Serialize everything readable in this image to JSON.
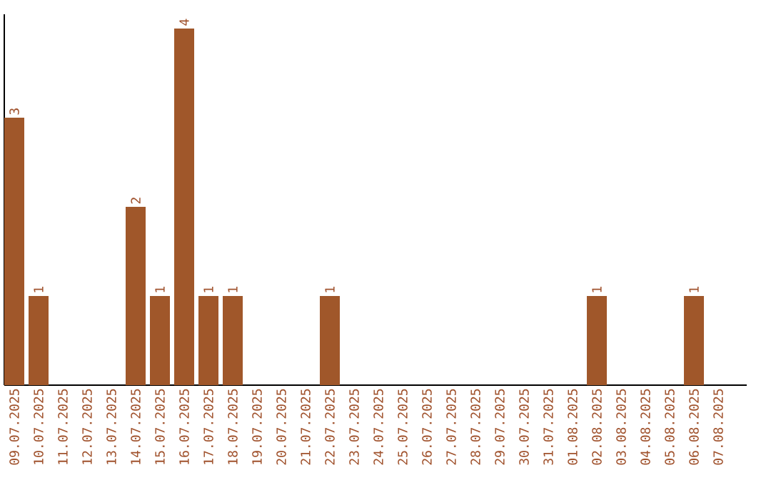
{
  "chart_data": {
    "type": "bar",
    "categories": [
      "09.07.2025",
      "10.07.2025",
      "11.07.2025",
      "12.07.2025",
      "13.07.2025",
      "14.07.2025",
      "15.07.2025",
      "16.07.2025",
      "17.07.2025",
      "18.07.2025",
      "19.07.2025",
      "20.07.2025",
      "21.07.2025",
      "22.07.2025",
      "23.07.2025",
      "24.07.2025",
      "25.07.2025",
      "26.07.2025",
      "27.07.2025",
      "28.07.2025",
      "29.07.2025",
      "30.07.2025",
      "31.07.2025",
      "01.08.2025",
      "02.08.2025",
      "03.08.2025",
      "04.08.2025",
      "05.08.2025",
      "06.08.2025",
      "07.08.2025"
    ],
    "values": [
      3,
      1,
      0,
      0,
      0,
      2,
      1,
      4,
      1,
      1,
      0,
      0,
      0,
      1,
      0,
      0,
      0,
      0,
      0,
      0,
      0,
      0,
      0,
      0,
      1,
      0,
      0,
      0,
      1,
      0
    ],
    "value_labels": [
      "3",
      "1",
      null,
      null,
      null,
      "2",
      "1",
      "4",
      "1",
      "1",
      null,
      null,
      null,
      "1",
      null,
      null,
      null,
      null,
      null,
      null,
      null,
      null,
      null,
      null,
      "1",
      null,
      null,
      null,
      "1",
      null
    ],
    "color": "#a0572a",
    "tick_labels": "x"
  }
}
